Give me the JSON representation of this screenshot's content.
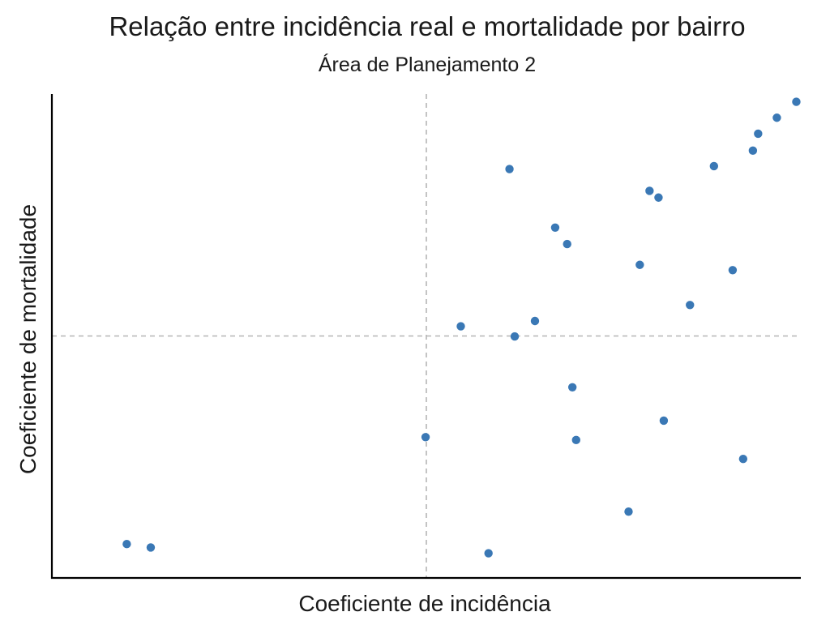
{
  "chart_data": {
    "type": "scatter",
    "title": "Relação entre incidência real e mortalidade por bairro",
    "subtitle": "Área de Planejamento 2",
    "xlabel": "Coeficiente de incidência",
    "ylabel": "Coeficiente de mortalidade",
    "xlim": [
      0,
      100
    ],
    "ylim": [
      0,
      100
    ],
    "x_reference": 50,
    "y_reference": 50,
    "grid": false,
    "point_color": "#3a78b5",
    "reference_line_color": "#b5b5b5",
    "axis_color": "#000000",
    "points": [
      {
        "x": 10.0,
        "y": 7.0
      },
      {
        "x": 13.2,
        "y": 6.3
      },
      {
        "x": 58.3,
        "y": 5.1
      },
      {
        "x": 49.9,
        "y": 29.1
      },
      {
        "x": 54.6,
        "y": 52.0
      },
      {
        "x": 61.8,
        "y": 49.9
      },
      {
        "x": 64.5,
        "y": 53.1
      },
      {
        "x": 69.5,
        "y": 39.4
      },
      {
        "x": 70.0,
        "y": 28.5
      },
      {
        "x": 78.5,
        "y": 64.7
      },
      {
        "x": 68.8,
        "y": 69.0
      },
      {
        "x": 67.2,
        "y": 72.4
      },
      {
        "x": 61.1,
        "y": 84.5
      },
      {
        "x": 79.8,
        "y": 80.0
      },
      {
        "x": 81.0,
        "y": 78.6
      },
      {
        "x": 85.2,
        "y": 56.4
      },
      {
        "x": 77.0,
        "y": 13.7
      },
      {
        "x": 81.7,
        "y": 32.5
      },
      {
        "x": 92.3,
        "y": 24.6
      },
      {
        "x": 90.9,
        "y": 63.6
      },
      {
        "x": 88.4,
        "y": 85.1
      },
      {
        "x": 93.6,
        "y": 88.3
      },
      {
        "x": 94.3,
        "y": 91.8
      },
      {
        "x": 96.8,
        "y": 95.1
      },
      {
        "x": 99.4,
        "y": 98.4
      }
    ]
  }
}
